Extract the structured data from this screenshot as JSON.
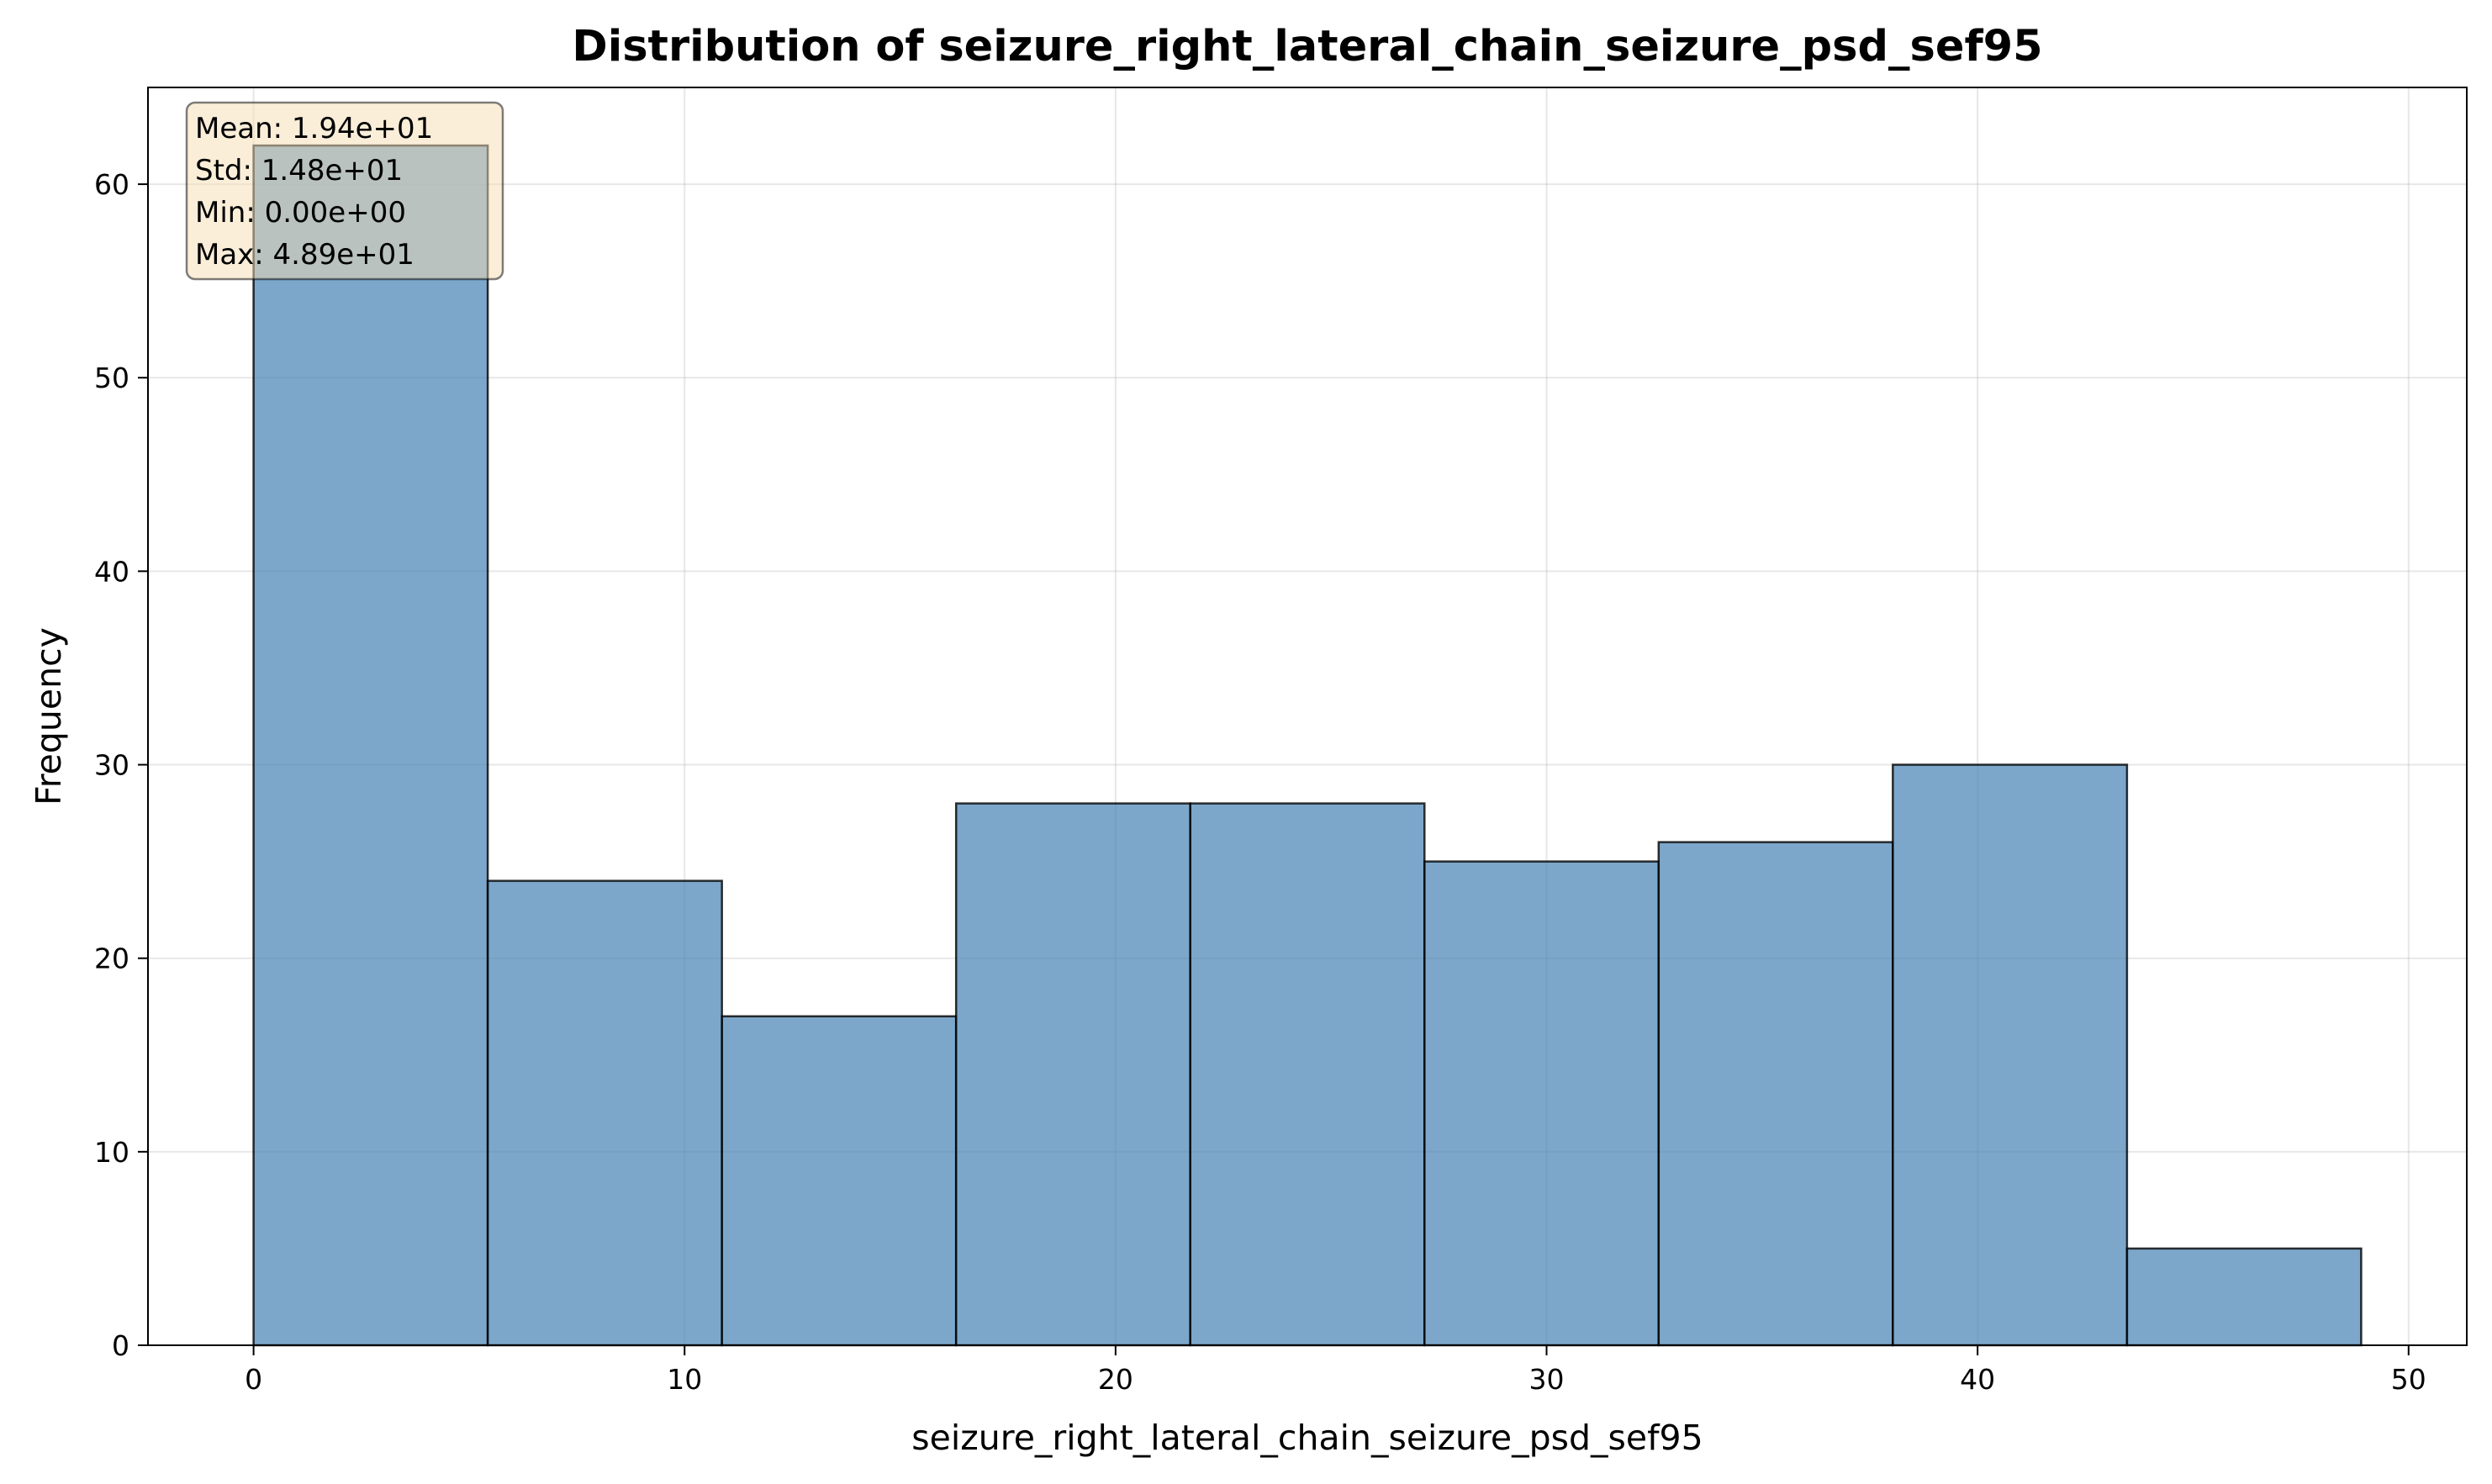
{
  "chart_data": {
    "type": "histogram",
    "title": "Distribution of seizure_right_lateral_chain_seizure_psd_sef95",
    "xlabel": "seizure_right_lateral_chain_seizure_psd_sef95",
    "ylabel": "Frequency",
    "xlim": [
      -2.45,
      51.35
    ],
    "ylim": [
      0,
      65
    ],
    "xticks": [
      0,
      10,
      20,
      30,
      40,
      50
    ],
    "yticks": [
      0,
      10,
      20,
      30,
      40,
      50,
      60
    ],
    "bin_edges": [
      0.0,
      5.433,
      10.867,
      16.3,
      21.733,
      27.167,
      32.6,
      38.033,
      43.467,
      48.9
    ],
    "values": [
      62,
      24,
      17,
      28,
      28,
      25,
      26,
      30,
      5
    ],
    "grid": true,
    "bar_color": "#4682b4",
    "bar_alpha": 0.7,
    "edge_color": "#000000",
    "stats_box": {
      "lines": [
        "Mean: 1.94e+01",
        "Std: 1.48e+01",
        "Min: 0.00e+00",
        "Max: 4.89e+01"
      ],
      "position": "top-left",
      "facecolor": "#f5deb3"
    }
  }
}
